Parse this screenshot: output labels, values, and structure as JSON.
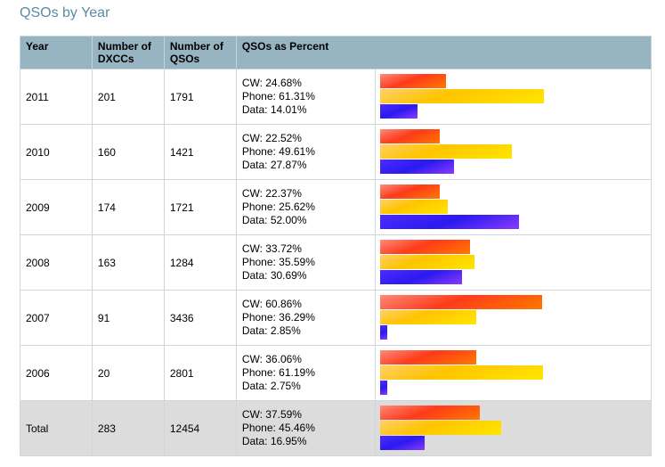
{
  "page": {
    "title": "QSOs by Year"
  },
  "table": {
    "headers": [
      "Year",
      "Number of DXCCs",
      "Number of QSOs",
      "QSOs as Percent"
    ],
    "rows": [
      {
        "year": "2011",
        "dxccs": "201",
        "qsos": "1791",
        "cw": "CW: 24.68%",
        "phone": "Phone: 61.31%",
        "data": "Data: 14.01%",
        "cw_pct": 24.68,
        "phone_pct": 61.31,
        "data_pct": 14.01
      },
      {
        "year": "2010",
        "dxccs": "160",
        "qsos": "1421",
        "cw": "CW: 22.52%",
        "phone": "Phone: 49.61%",
        "data": "Data: 27.87%",
        "cw_pct": 22.52,
        "phone_pct": 49.61,
        "data_pct": 27.87
      },
      {
        "year": "2009",
        "dxccs": "174",
        "qsos": "1721",
        "cw": "CW: 22.37%",
        "phone": "Phone: 25.62%",
        "data": "Data: 52.00%",
        "cw_pct": 22.37,
        "phone_pct": 25.62,
        "data_pct": 52.0
      },
      {
        "year": "2008",
        "dxccs": "163",
        "qsos": "1284",
        "cw": "CW: 33.72%",
        "phone": "Phone: 35.59%",
        "data": "Data: 30.69%",
        "cw_pct": 33.72,
        "phone_pct": 35.59,
        "data_pct": 30.69
      },
      {
        "year": "2007",
        "dxccs": "91",
        "qsos": "3436",
        "cw": "CW: 60.86%",
        "phone": "Phone: 36.29%",
        "data": "Data: 2.85%",
        "cw_pct": 60.86,
        "phone_pct": 36.29,
        "data_pct": 2.85
      },
      {
        "year": "2006",
        "dxccs": "20",
        "qsos": "2801",
        "cw": "CW: 36.06%",
        "phone": "Phone: 61.19%",
        "data": "Data: 2.75%",
        "cw_pct": 36.06,
        "phone_pct": 61.19,
        "data_pct": 2.75
      }
    ],
    "total": {
      "year": "Total",
      "dxccs": "283",
      "qsos": "12454",
      "cw": "CW: 37.59%",
      "phone": "Phone: 45.46%",
      "data": "Data: 16.95%",
      "cw_pct": 37.59,
      "phone_pct": 45.46,
      "data_pct": 16.95
    }
  },
  "colors": {
    "header_bg": "#97b4c3",
    "title": "#5b8aa6",
    "cw": "#ff3b1a",
    "phone": "#ffc400",
    "data": "#2b1af0"
  }
}
